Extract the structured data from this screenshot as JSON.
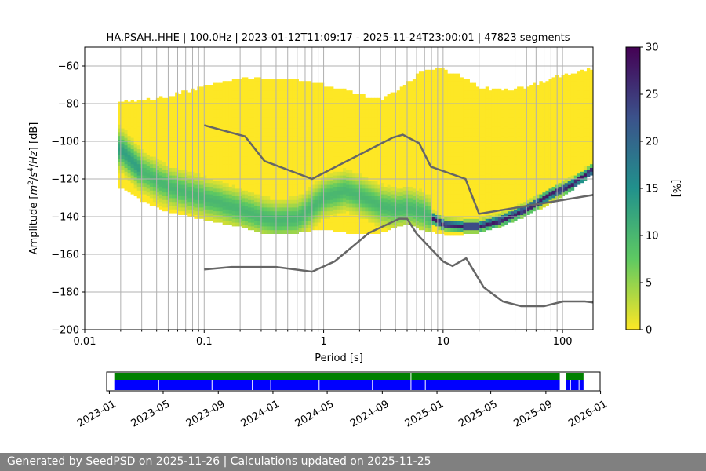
{
  "footer": {
    "text": "Generated by SeedPSD on 2025-11-26 | Calculations updated on 2025-11-25"
  },
  "chart_data": [
    {
      "type": "heatmap",
      "title": "HA.PSAH..HHE | 100.0Hz | 2023-01-12T11:09:17 - 2025-11-24T23:00:01 | 47823 segments",
      "xlabel": "Period [s]",
      "ylabel_parts": [
        "Amplitude [",
        "m",
        "2",
        "/",
        "s",
        "4",
        "/",
        "Hz",
        "] [dB]"
      ],
      "xscale": "log",
      "xlim": [
        0.01,
        180
      ],
      "ylim": [
        -200,
        -50
      ],
      "x_ticks": [
        {
          "value": 0.01,
          "label": "0.01"
        },
        {
          "value": 0.1,
          "label": "0.1"
        },
        {
          "value": 1,
          "label": "1"
        },
        {
          "value": 10,
          "label": "10"
        },
        {
          "value": 100,
          "label": "100"
        }
      ],
      "y_ticks": [
        {
          "value": -60,
          "label": "−60"
        },
        {
          "value": -80,
          "label": "−80"
        },
        {
          "value": -100,
          "label": "−100"
        },
        {
          "value": -120,
          "label": "−120"
        },
        {
          "value": -140,
          "label": "−140"
        },
        {
          "value": -160,
          "label": "−160"
        },
        {
          "value": -180,
          "label": "−180"
        },
        {
          "value": -200,
          "label": "−200"
        }
      ],
      "grid": true,
      "density": {
        "upper_edge": [
          [
            0.02,
            -80
          ],
          [
            0.03,
            -79
          ],
          [
            0.05,
            -77
          ],
          [
            0.1,
            -72
          ],
          [
            0.2,
            -68
          ],
          [
            0.3,
            -67
          ],
          [
            0.6,
            -69
          ],
          [
            1,
            -71
          ],
          [
            2,
            -76
          ],
          [
            3,
            -79
          ],
          [
            5,
            -70
          ],
          [
            7,
            -63
          ],
          [
            10,
            -63
          ],
          [
            15,
            -67
          ],
          [
            20,
            -72
          ],
          [
            30,
            -74
          ],
          [
            50,
            -72
          ],
          [
            100,
            -66
          ],
          [
            180,
            -62
          ]
        ],
        "lower_edge": [
          [
            0.02,
            -125
          ],
          [
            0.03,
            -132
          ],
          [
            0.05,
            -138
          ],
          [
            0.1,
            -142
          ],
          [
            0.2,
            -146
          ],
          [
            0.3,
            -149
          ],
          [
            0.6,
            -149
          ],
          [
            1,
            -147
          ],
          [
            1.5,
            -149
          ],
          [
            3,
            -149
          ],
          [
            5,
            -144
          ],
          [
            7,
            -148
          ],
          [
            10,
            -150
          ],
          [
            15,
            -150
          ],
          [
            20,
            -149
          ],
          [
            30,
            -146
          ],
          [
            50,
            -140
          ],
          [
            100,
            -130
          ],
          [
            180,
            -118
          ]
        ],
        "mode_curve": [
          [
            0.02,
            -105
          ],
          [
            0.03,
            -117
          ],
          [
            0.05,
            -125
          ],
          [
            0.1,
            -131
          ],
          [
            0.2,
            -137
          ],
          [
            0.3,
            -141
          ],
          [
            0.4,
            -143
          ],
          [
            0.6,
            -142
          ],
          [
            0.8,
            -136
          ],
          [
            1,
            -131
          ],
          [
            1.5,
            -127
          ],
          [
            2,
            -130
          ],
          [
            3,
            -135
          ],
          [
            4,
            -137
          ],
          [
            5,
            -136
          ],
          [
            7,
            -139
          ],
          [
            10,
            -145
          ],
          [
            15,
            -146
          ],
          [
            20,
            -146
          ],
          [
            30,
            -143
          ],
          [
            50,
            -137
          ],
          [
            80,
            -129
          ],
          [
            120,
            -124
          ],
          [
            180,
            -116
          ]
        ],
        "sharp_mode_x_range": [
          8,
          180
        ],
        "max_percent": 30
      },
      "nlnm": [
        [
          0.1,
          -168
        ],
        [
          0.17,
          -166.7
        ],
        [
          0.4,
          -166.7
        ],
        [
          0.8,
          -169.2
        ],
        [
          1.24,
          -163.7
        ],
        [
          2.4,
          -148.6
        ],
        [
          4.3,
          -141.1
        ],
        [
          5,
          -141.1
        ],
        [
          6,
          -149
        ],
        [
          10,
          -163.8
        ],
        [
          12,
          -166.2
        ],
        [
          15.6,
          -162.1
        ],
        [
          21.9,
          -177.5
        ],
        [
          31.6,
          -185
        ],
        [
          45,
          -187.5
        ],
        [
          70,
          -187.5
        ],
        [
          101,
          -185
        ],
        [
          154,
          -185
        ],
        [
          180,
          -185.5
        ]
      ],
      "nhnm": [
        [
          0.1,
          -91.5
        ],
        [
          0.22,
          -97.4
        ],
        [
          0.32,
          -110.5
        ],
        [
          0.8,
          -120
        ],
        [
          3.8,
          -98
        ],
        [
          4.6,
          -96.5
        ],
        [
          6.3,
          -101
        ],
        [
          7.9,
          -113.5
        ],
        [
          15.4,
          -120
        ],
        [
          20,
          -138.5
        ],
        [
          180,
          -128.5
        ]
      ],
      "colorbar": {
        "label": "[%]",
        "min": 0,
        "max": 30,
        "ticks": [
          {
            "value": 0,
            "label": "0"
          },
          {
            "value": 5,
            "label": "5"
          },
          {
            "value": 10,
            "label": "10"
          },
          {
            "value": 15,
            "label": "15"
          },
          {
            "value": 20,
            "label": "20"
          },
          {
            "value": 25,
            "label": "25"
          },
          {
            "value": 30,
            "label": "30"
          }
        ],
        "colormap": [
          "#fde725",
          "#5ec962",
          "#21918c",
          "#3b528b",
          "#440154"
        ]
      },
      "colors": {
        "noise_model": "#666666",
        "grid": "#b0b0b0",
        "cell_low": "#fde725"
      }
    },
    {
      "type": "bar",
      "title": "",
      "xlabel": "",
      "ylabel": "",
      "xlim": [
        "2022-12-26",
        "2025-12-31"
      ],
      "x_ticks": [
        "2023-01",
        "2023-05",
        "2023-09",
        "2024-01",
        "2024-05",
        "2024-09",
        "2025-01",
        "2025-05",
        "2025-09",
        "2026-01"
      ],
      "series": [
        {
          "color": "#008000",
          "periods": [
            [
              "2023-01-12",
              "2025-10-02"
            ],
            [
              "2025-10-16",
              "2025-11-24"
            ]
          ],
          "gaps": [
            "2024-11-04"
          ]
        },
        {
          "color": "#0000ff",
          "periods": [
            [
              "2023-01-12",
              "2025-10-02"
            ],
            [
              "2025-10-16",
              "2025-11-24"
            ]
          ],
          "gaps": [
            "2023-04-21",
            "2023-08-18",
            "2023-11-16",
            "2023-12-27",
            "2024-04-13",
            "2024-08-10",
            "2024-11-04",
            "2024-12-06",
            "2025-10-26",
            "2025-11-14"
          ]
        }
      ]
    }
  ]
}
